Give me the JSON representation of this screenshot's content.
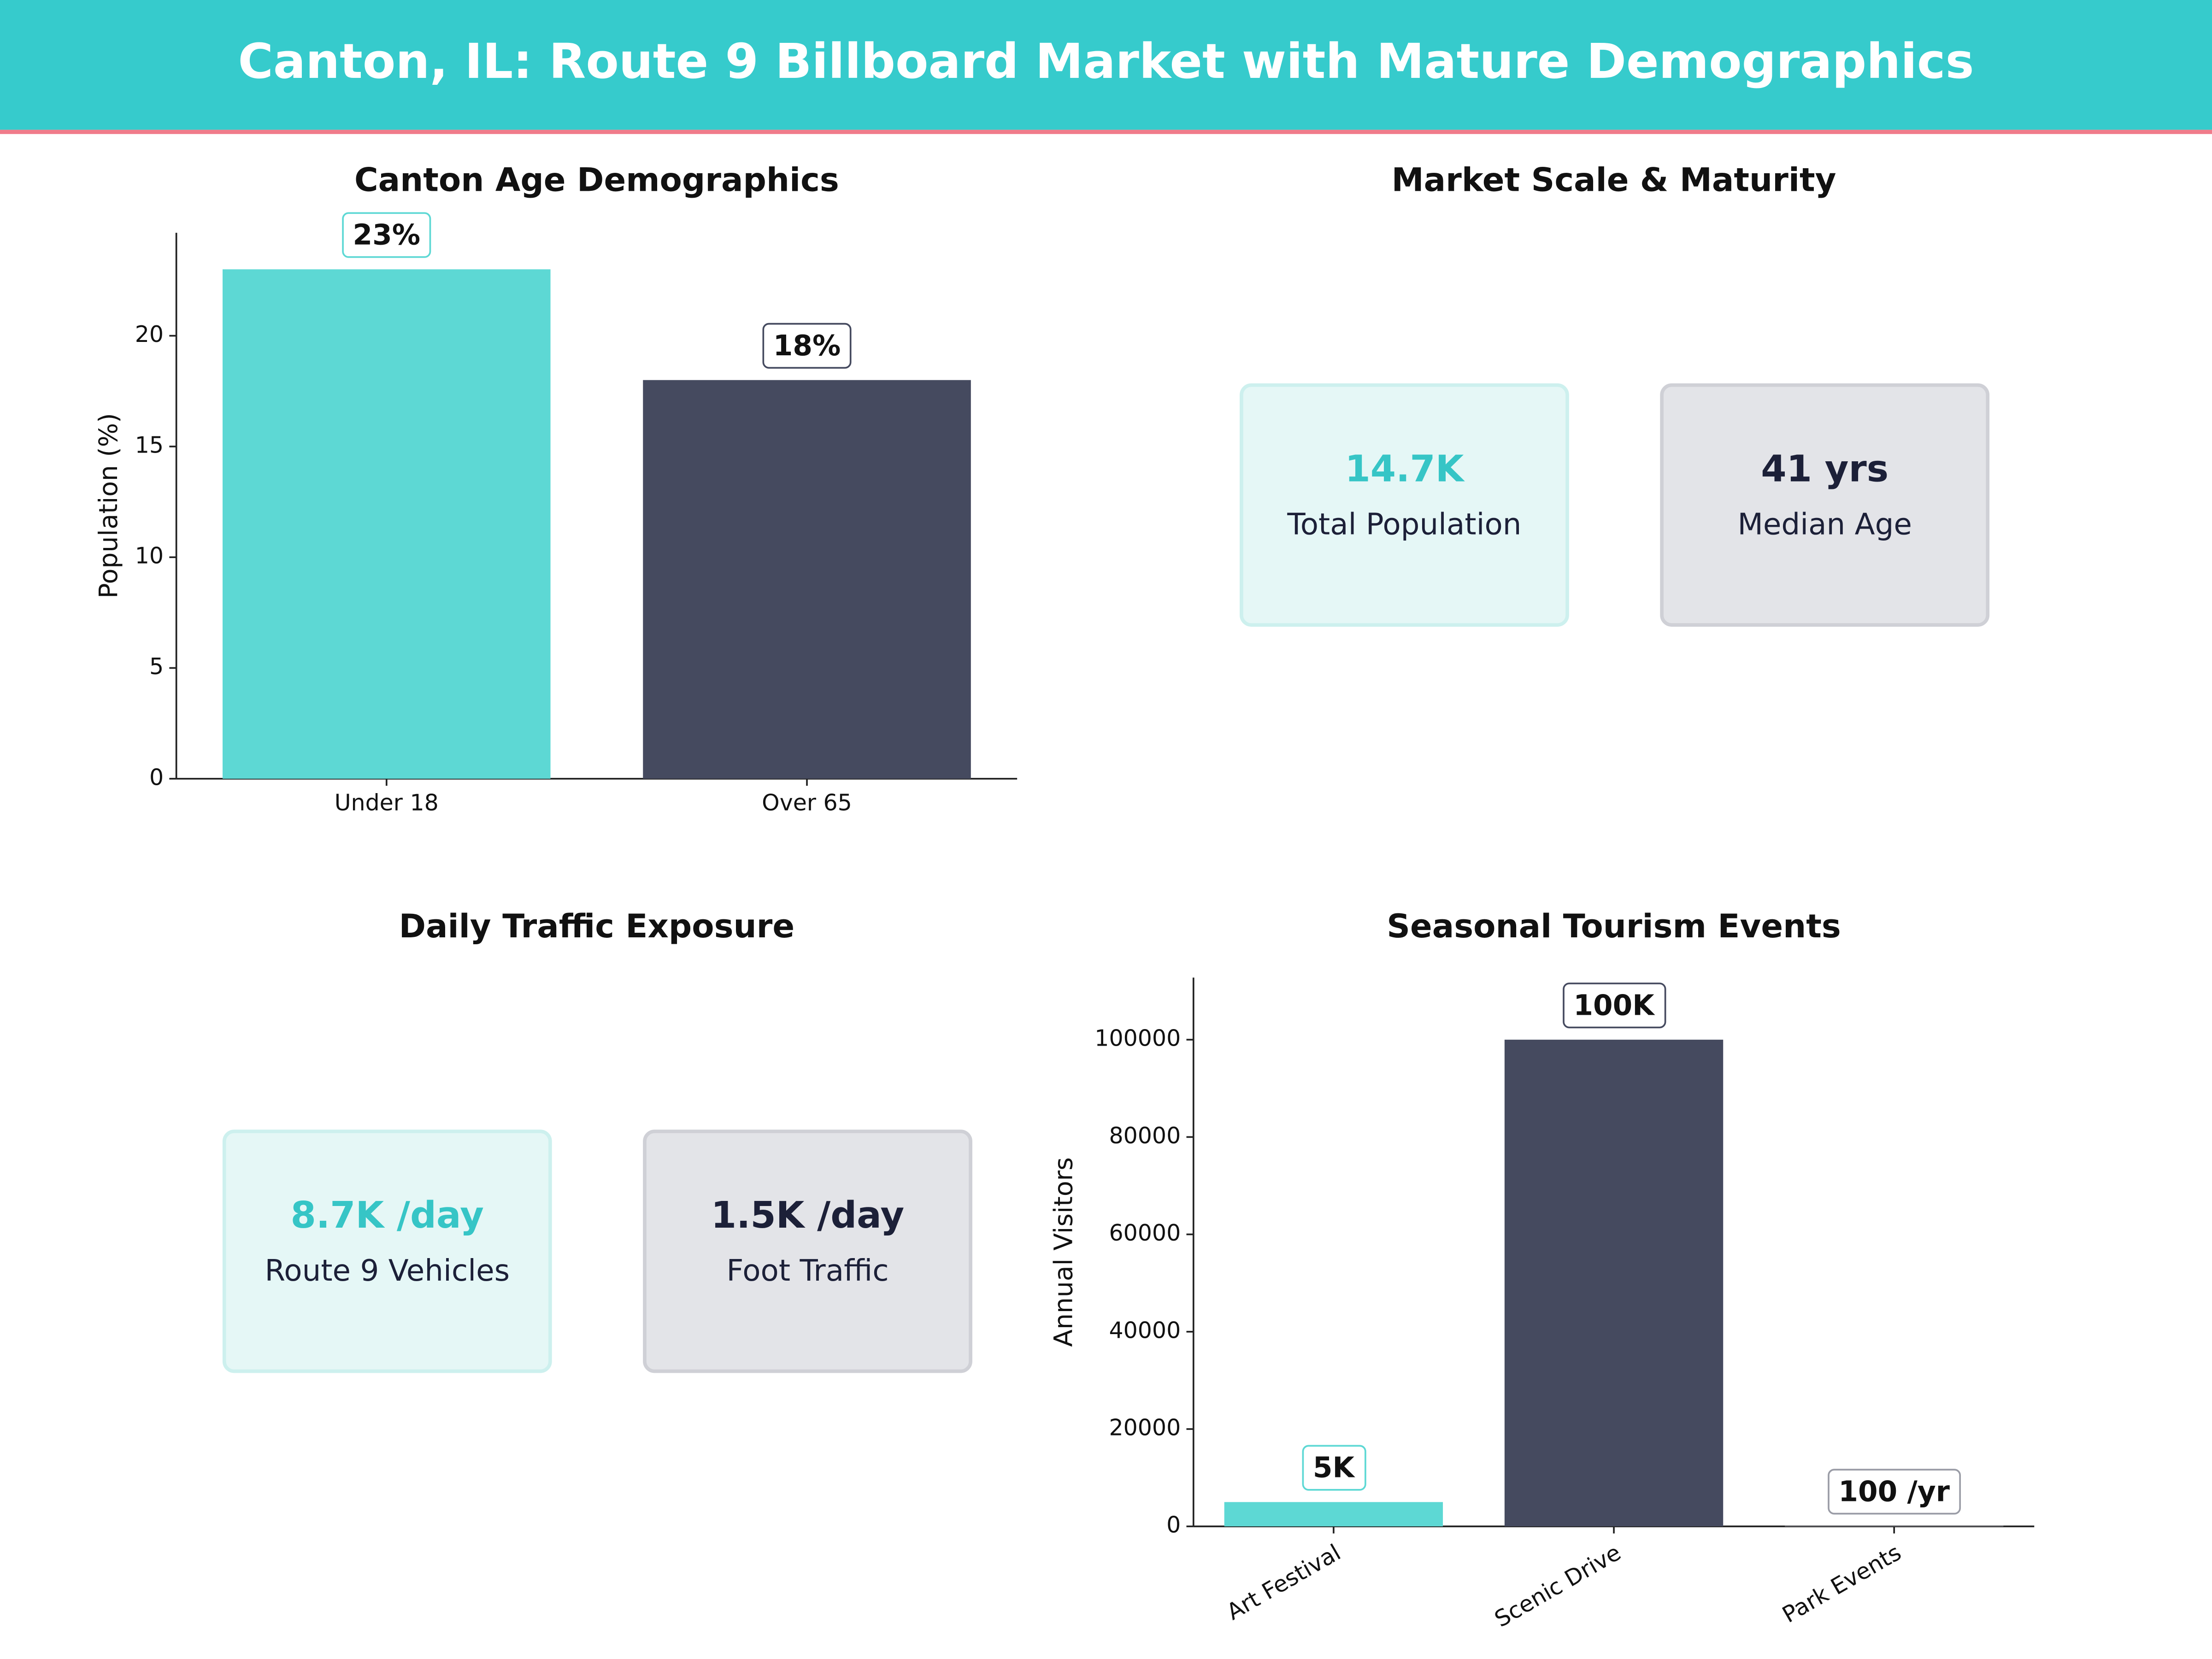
{
  "title": "Canton, IL: Route 9 Billboard Market with Mature Demographics",
  "chart_data": [
    {
      "type": "bar",
      "title": "Canton Age Demographics",
      "ylabel": "Population (%)",
      "categories": [
        "Under 18",
        "Over 65"
      ],
      "values": [
        23,
        18
      ],
      "value_labels": [
        "23%",
        "18%"
      ],
      "colors": [
        "#5dd8d4",
        "#454a5f"
      ],
      "ylim": [
        0,
        24.65
      ],
      "yticks": [
        0,
        5,
        10,
        15,
        20
      ]
    },
    {
      "type": "kpi",
      "title": "Market Scale & Maturity",
      "cards": [
        {
          "value": "14.7K",
          "label": "Total Population",
          "value_color": "#36c5c6",
          "fill": "#e5f7f6",
          "border": "#cdf0ee"
        },
        {
          "value": "41 yrs",
          "label": "Median Age",
          "value_color": "#1c2038",
          "fill": "#e3e4e8",
          "border": "#cfd0d6"
        }
      ]
    },
    {
      "type": "kpi",
      "title": "Daily Traffic Exposure",
      "cards": [
        {
          "value": "8.7K /day",
          "label": "Route 9 Vehicles",
          "value_color": "#36c5c6",
          "fill": "#e5f7f6",
          "border": "#cdf0ee"
        },
        {
          "value": "1.5K /day",
          "label": "Foot Traffic",
          "value_color": "#1c2038",
          "fill": "#e3e4e8",
          "border": "#cfd0d6"
        }
      ]
    },
    {
      "type": "bar",
      "title": "Seasonal Tourism Events",
      "ylabel": "Annual Visitors",
      "categories": [
        "Art Festival",
        "Scenic Drive",
        "Park Events"
      ],
      "values": [
        5000,
        100000,
        100
      ],
      "value_labels": [
        "5K",
        "100K",
        "100 /yr"
      ],
      "colors": [
        "#5dd8d4",
        "#454a5f",
        "#9a9ca6"
      ],
      "ylim": [
        0,
        112750
      ],
      "yticks": [
        0,
        20000,
        40000,
        60000,
        80000,
        100000
      ],
      "rotate_labels": true
    }
  ]
}
